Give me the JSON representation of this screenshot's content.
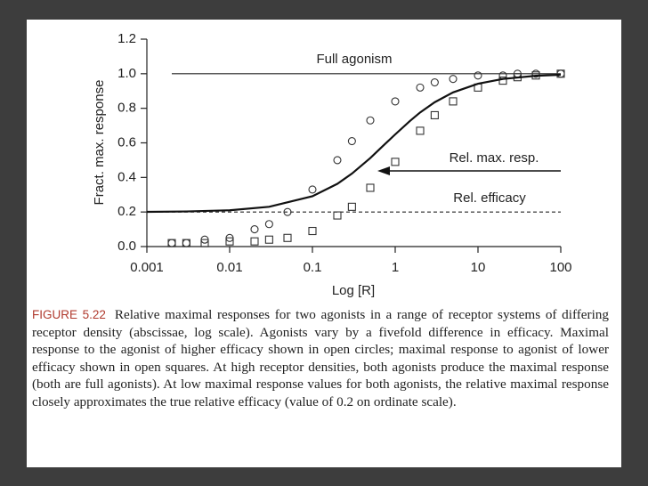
{
  "chart_data": {
    "type": "scatter",
    "ylabel": "Fract. max. response",
    "xlabel": "Log [R]",
    "log_x": true,
    "xlim": [
      0.001,
      100
    ],
    "xticks": [
      0.001,
      0.01,
      0.1,
      1,
      10,
      100
    ],
    "ylim": [
      0,
      1.2
    ],
    "yticks": [
      {
        "value": 0,
        "label": "0.0"
      },
      0.2,
      0.4,
      0.6,
      0.8,
      {
        "value": 1,
        "label": "1.0"
      },
      1.2
    ],
    "series": [
      {
        "marker": "circle",
        "color": "#333333",
        "x": [
          0.002,
          0.003,
          0.005,
          0.01,
          0.02,
          0.03,
          0.05,
          0.1,
          0.2,
          0.3,
          0.5,
          1,
          2,
          3,
          5,
          10,
          20,
          30,
          50,
          100
        ],
        "values": [
          0.02,
          0.02,
          0.04,
          0.05,
          0.1,
          0.13,
          0.2,
          0.33,
          0.5,
          0.61,
          0.73,
          0.84,
          0.92,
          0.95,
          0.97,
          0.99,
          0.99,
          1,
          1,
          1
        ]
      },
      {
        "marker": "square",
        "color": "#333333",
        "x": [
          0.002,
          0.003,
          0.005,
          0.01,
          0.02,
          0.03,
          0.05,
          0.1,
          0.2,
          0.3,
          0.5,
          1,
          2,
          3,
          5,
          10,
          20,
          30,
          50,
          100
        ],
        "values": [
          0.02,
          0.02,
          0.02,
          0.03,
          0.03,
          0.04,
          0.05,
          0.09,
          0.18,
          0.23,
          0.34,
          0.49,
          0.67,
          0.76,
          0.84,
          0.92,
          0.96,
          0.98,
          0.99,
          1
        ]
      },
      {
        "marker": "line",
        "color": "#111111",
        "x": [
          0.001,
          0.003,
          0.01,
          0.03,
          0.1,
          0.2,
          0.3,
          0.5,
          0.7,
          1,
          1.5,
          2,
          3,
          5,
          10,
          20,
          50,
          100
        ],
        "values": [
          0.201,
          0.203,
          0.21,
          0.23,
          0.291,
          0.363,
          0.422,
          0.512,
          0.579,
          0.649,
          0.726,
          0.776,
          0.835,
          0.892,
          0.942,
          0.97,
          0.988,
          0.994
        ]
      }
    ],
    "reference_lines": [
      {
        "y": 1,
        "x": [
          0.002,
          100
        ],
        "dashed": false
      },
      {
        "y": 0.2,
        "x": [
          0.001,
          100
        ],
        "dashed": true
      }
    ],
    "annotations": [
      "Full agonism",
      "Rel. max. resp.",
      "Rel. efficacy"
    ]
  },
  "caption": {
    "label": "FIGURE 5.22",
    "text": "Relative maximal responses for two agonists in a range of receptor systems of differing receptor density (abscissae, log scale). Agonists vary by a fivefold difference in efficacy. Maximal response to the agonist of higher efficacy shown in open circles; maximal response to agonist of lower efficacy shown in open squares. At high receptor densities, both agonists produce the maximal response (both are full agonists). At low maximal response values for both agonists, the relative maximal response closely approximates the true relative efficacy (value of 0.2 on ordinate scale)."
  }
}
